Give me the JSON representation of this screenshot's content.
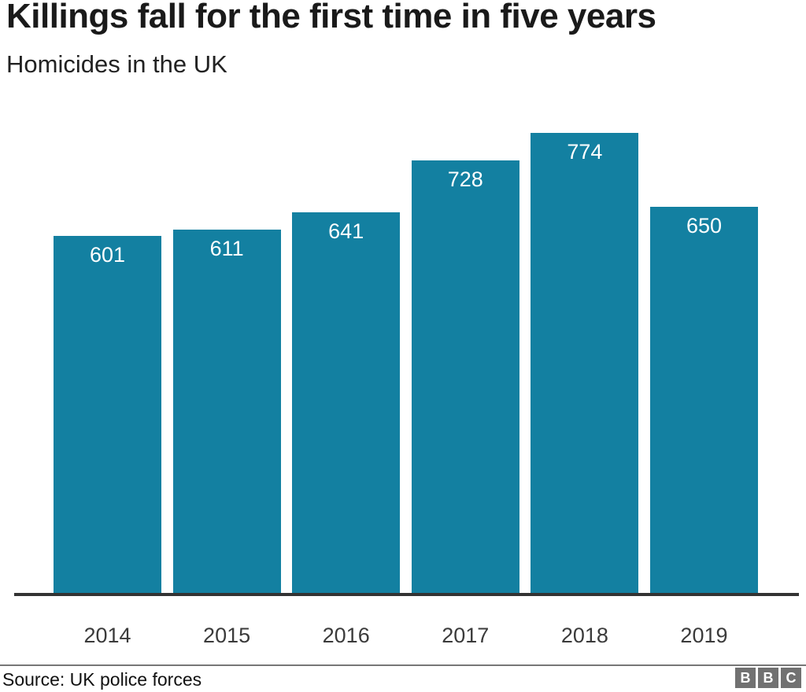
{
  "header": {
    "title": "Killings fall for the first time in five years",
    "subtitle": "Homicides in the UK"
  },
  "chart_data": {
    "type": "bar",
    "categories": [
      "2014",
      "2015",
      "2016",
      "2017",
      "2018",
      "2019"
    ],
    "values": [
      601,
      611,
      641,
      728,
      774,
      650
    ],
    "title": "Killings fall for the first time in five years",
    "subtitle": "Homicides in the UK",
    "xlabel": "",
    "ylabel": "",
    "ylim": [
      0,
      774
    ],
    "grid": false,
    "legend": false,
    "bar_color": "#1380A1",
    "value_label_color": "#ffffff",
    "value_label_position": "inside-top"
  },
  "footer": {
    "source": "Source: UK police forces",
    "logo_letters": [
      "B",
      "B",
      "C"
    ]
  },
  "colors": {
    "bar": "#1380A1",
    "title_text": "#1a1a1a",
    "axis_line": "#333333",
    "footer_divider": "#777777",
    "logo_background": "#717171"
  }
}
